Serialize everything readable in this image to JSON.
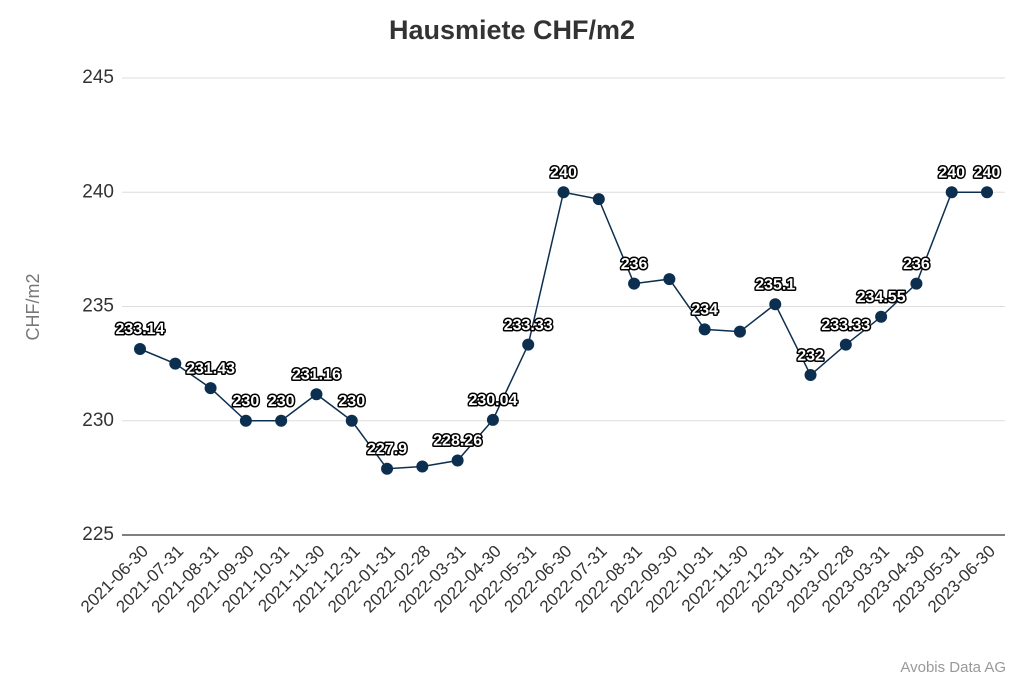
{
  "chart_data": {
    "type": "line",
    "title": "Hausmiete CHF/m2",
    "y_label": "CHF/m2",
    "source": "Avobis Data AG",
    "categories": [
      "2021-06-30",
      "2021-07-31",
      "2021-08-31",
      "2021-09-30",
      "2021-10-31",
      "2021-11-30",
      "2021-12-31",
      "2022-01-31",
      "2022-02-28",
      "2022-03-31",
      "2022-04-30",
      "2022-05-31",
      "2022-06-30",
      "2022-07-31",
      "2022-08-31",
      "2022-09-30",
      "2022-10-31",
      "2022-11-30",
      "2022-12-31",
      "2023-01-31",
      "2023-02-28",
      "2023-03-31",
      "2023-04-30",
      "2023-05-31",
      "2023-06-30"
    ],
    "series": [
      {
        "name": "Hausmiete",
        "color": "#0d2f4f",
        "values": [
          233.14,
          232.5,
          231.43,
          230,
          230,
          231.16,
          230,
          227.9,
          228,
          228.26,
          230.04,
          233.33,
          240,
          239.7,
          236,
          236.2,
          234,
          233.9,
          235.1,
          232,
          233.33,
          234.55,
          236,
          240,
          240
        ],
        "value_labels": [
          "233.14",
          null,
          "231.43",
          "230",
          "230",
          "231.16",
          "230",
          "227.9",
          null,
          "228.26",
          "230.04",
          "233.33",
          "240",
          null,
          "236",
          null,
          "234",
          null,
          "235.1",
          "232",
          "233.33",
          "234.55",
          "236",
          "240",
          "240"
        ]
      }
    ],
    "ylim": [
      225,
      245
    ],
    "yticks": [
      225,
      230,
      235,
      240,
      245
    ],
    "grid": true
  }
}
